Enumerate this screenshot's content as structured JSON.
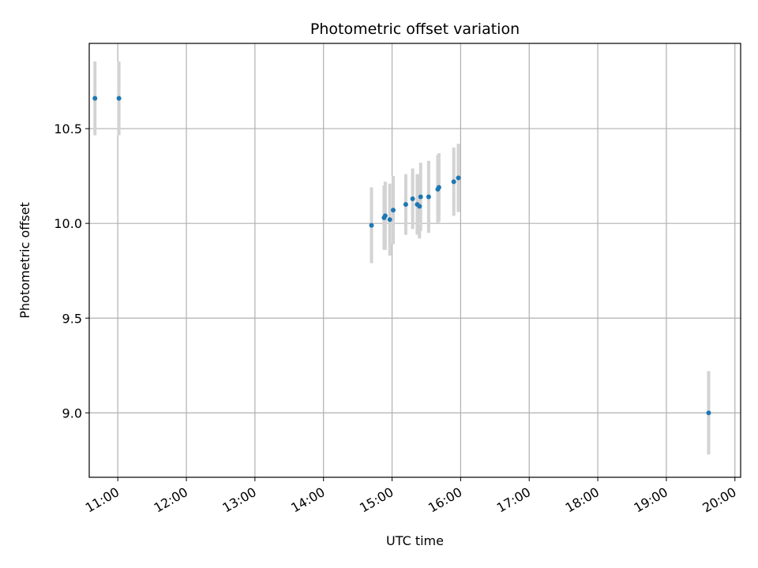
{
  "chart_data": {
    "type": "scatter",
    "title": "Photometric offset variation",
    "xlabel": "UTC time",
    "ylabel": "Photometric offset",
    "x_tick_labels": [
      "11:00",
      "12:00",
      "13:00",
      "14:00",
      "15:00",
      "16:00",
      "17:00",
      "18:00",
      "19:00",
      "20:00"
    ],
    "y_tick_labels": [
      "9.0",
      "9.5",
      "10.0",
      "10.5"
    ],
    "y_ticks": [
      9.0,
      9.5,
      10.0,
      10.5
    ],
    "xlim": [
      "10:35",
      "20:05"
    ],
    "ylim": [
      8.66,
      10.95
    ],
    "grid": true,
    "colors": {
      "marker": "#1f77b4",
      "errorbar": "#d3d3d3",
      "grid": "#b0b0b0"
    },
    "points": [
      {
        "x": "10:40",
        "y": 10.66,
        "yerr": 0.195
      },
      {
        "x": "11:01",
        "y": 10.66,
        "yerr": 0.195
      },
      {
        "x": "14:42",
        "y": 9.99,
        "yerr": 0.2
      },
      {
        "x": "14:53",
        "y": 10.03,
        "yerr": 0.17
      },
      {
        "x": "14:54",
        "y": 10.04,
        "yerr": 0.18
      },
      {
        "x": "14:58",
        "y": 10.02,
        "yerr": 0.19
      },
      {
        "x": "15:01",
        "y": 10.07,
        "yerr": 0.18
      },
      {
        "x": "15:12",
        "y": 10.1,
        "yerr": 0.16
      },
      {
        "x": "15:18",
        "y": 10.13,
        "yerr": 0.16
      },
      {
        "x": "15:22",
        "y": 10.1,
        "yerr": 0.16
      },
      {
        "x": "15:24",
        "y": 10.09,
        "yerr": 0.17
      },
      {
        "x": "15:25",
        "y": 10.14,
        "yerr": 0.18
      },
      {
        "x": "15:32",
        "y": 10.14,
        "yerr": 0.19
      },
      {
        "x": "15:40",
        "y": 10.18,
        "yerr": 0.18
      },
      {
        "x": "15:41",
        "y": 10.19,
        "yerr": 0.18
      },
      {
        "x": "15:54",
        "y": 10.22,
        "yerr": 0.18
      },
      {
        "x": "15:58",
        "y": 10.24,
        "yerr": 0.18
      },
      {
        "x": "19:37",
        "y": 9.0,
        "yerr": 0.22
      }
    ]
  }
}
